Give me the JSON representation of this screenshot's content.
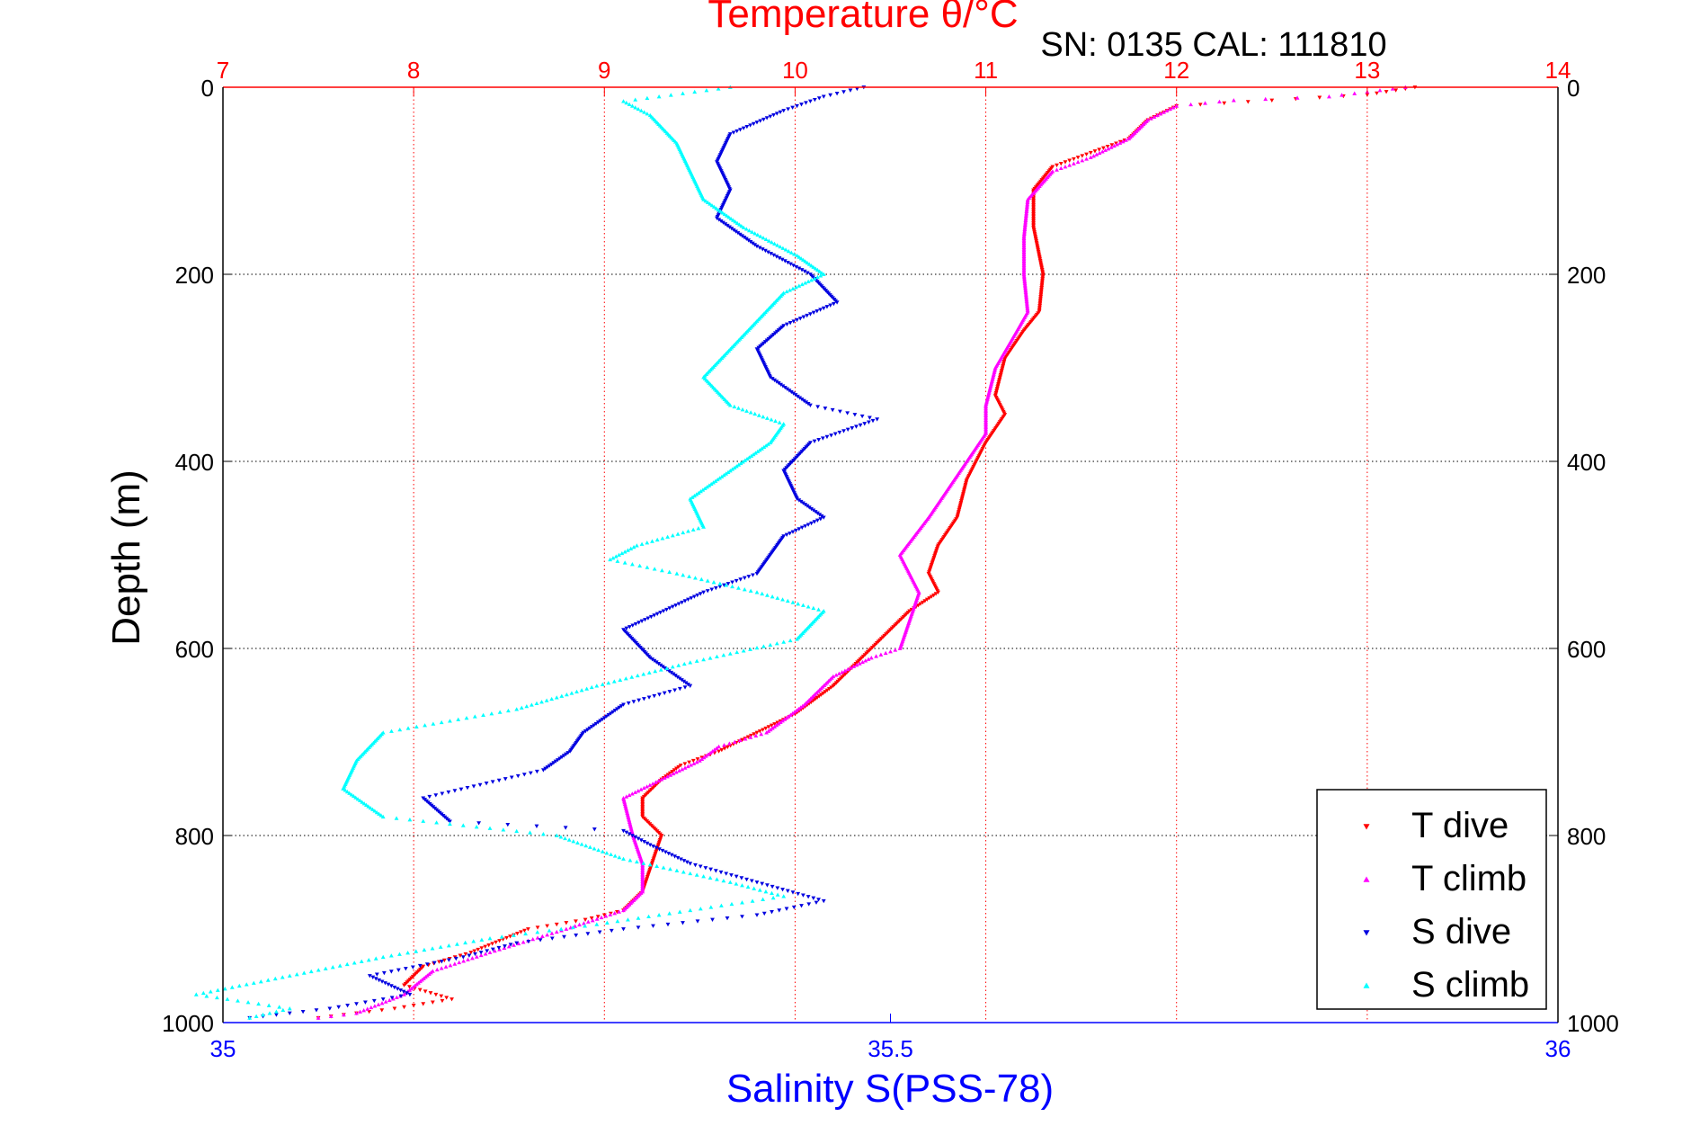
{
  "title_top": "Temperature θ/°C",
  "subtitle": "SN: 0135  CAL: 111810",
  "colors": {
    "t_dive": "#ff0000",
    "t_climb": "#ff00ff",
    "s_dive": "#0000e0",
    "s_climb": "#00ffff",
    "temp_axis": "#ff0000",
    "sal_axis": "#0000ff",
    "grid": "#000000"
  },
  "chart_data": {
    "type": "scatter",
    "title": "Temperature θ/°C",
    "subtitle": "SN: 0135  CAL: 111810",
    "ylabel": "Depth (m)",
    "xlabel_bottom": "Salinity S(PSS-78)",
    "xlabel_top": "Temperature θ/°C",
    "ylim": [
      0,
      1000
    ],
    "y_reversed": true,
    "y_ticks": [
      "0",
      "200",
      "400",
      "600",
      "800",
      "1000"
    ],
    "y_tick_values": [
      0,
      200,
      400,
      600,
      800,
      1000
    ],
    "temp_lim": [
      7,
      14
    ],
    "temp_ticks": [
      "7",
      "8",
      "9",
      "10",
      "11",
      "12",
      "13",
      "14"
    ],
    "temp_tick_values": [
      7,
      8,
      9,
      10,
      11,
      12,
      13,
      14
    ],
    "sal_lim": [
      35,
      36
    ],
    "sal_ticks": [
      "35",
      "35.5",
      "36"
    ],
    "sal_tick_values": [
      35,
      35.5,
      36
    ],
    "grid": true,
    "legend_position": "bottom-right",
    "series": [
      {
        "name": "T dive",
        "axis": "temperature",
        "marker": "triangle-down",
        "points": [
          [
            13.25,
            0
          ],
          [
            13.0,
            8
          ],
          [
            12.5,
            14
          ],
          [
            12.0,
            20
          ],
          [
            11.85,
            35
          ],
          [
            11.75,
            55
          ],
          [
            11.55,
            70
          ],
          [
            11.35,
            85
          ],
          [
            11.25,
            110
          ],
          [
            11.25,
            150
          ],
          [
            11.3,
            200
          ],
          [
            11.28,
            240
          ],
          [
            11.2,
            260
          ],
          [
            11.1,
            290
          ],
          [
            11.05,
            330
          ],
          [
            11.1,
            350
          ],
          [
            11.0,
            380
          ],
          [
            10.9,
            420
          ],
          [
            10.85,
            460
          ],
          [
            10.75,
            490
          ],
          [
            10.7,
            520
          ],
          [
            10.75,
            540
          ],
          [
            10.6,
            560
          ],
          [
            10.5,
            580
          ],
          [
            10.35,
            610
          ],
          [
            10.2,
            640
          ],
          [
            10.0,
            670
          ],
          [
            9.8,
            690
          ],
          [
            9.6,
            710
          ],
          [
            9.4,
            725
          ],
          [
            9.3,
            740
          ],
          [
            9.2,
            760
          ],
          [
            9.2,
            780
          ],
          [
            9.3,
            800
          ],
          [
            9.25,
            830
          ],
          [
            9.2,
            860
          ],
          [
            9.1,
            880
          ],
          [
            8.9,
            890
          ],
          [
            8.6,
            900
          ],
          [
            8.3,
            925
          ],
          [
            8.05,
            940
          ],
          [
            7.95,
            960
          ],
          [
            8.2,
            975
          ],
          [
            7.9,
            985
          ],
          [
            7.7,
            990
          ],
          [
            7.5,
            995
          ]
        ]
      },
      {
        "name": "T climb",
        "axis": "temperature",
        "marker": "triangle-up",
        "points": [
          [
            13.2,
            0
          ],
          [
            12.8,
            10
          ],
          [
            12.3,
            14
          ],
          [
            12.0,
            20
          ],
          [
            11.85,
            35
          ],
          [
            11.75,
            55
          ],
          [
            11.55,
            75
          ],
          [
            11.35,
            90
          ],
          [
            11.22,
            120
          ],
          [
            11.2,
            160
          ],
          [
            11.2,
            200
          ],
          [
            11.22,
            240
          ],
          [
            11.15,
            265
          ],
          [
            11.05,
            300
          ],
          [
            11.0,
            340
          ],
          [
            11.0,
            370
          ],
          [
            10.9,
            400
          ],
          [
            10.8,
            430
          ],
          [
            10.7,
            460
          ],
          [
            10.55,
            500
          ],
          [
            10.65,
            540
          ],
          [
            10.6,
            570
          ],
          [
            10.55,
            600
          ],
          [
            10.4,
            610
          ],
          [
            10.2,
            630
          ],
          [
            10.05,
            660
          ],
          [
            9.85,
            690
          ],
          [
            9.6,
            705
          ],
          [
            9.5,
            720
          ],
          [
            9.3,
            740
          ],
          [
            9.1,
            760
          ],
          [
            9.15,
            800
          ],
          [
            9.2,
            830
          ],
          [
            9.2,
            860
          ],
          [
            9.1,
            880
          ],
          [
            8.8,
            900
          ],
          [
            8.4,
            925
          ],
          [
            8.1,
            945
          ],
          [
            7.95,
            970
          ],
          [
            7.7,
            990
          ],
          [
            7.5,
            995
          ]
        ]
      },
      {
        "name": "S dive",
        "axis": "salinity",
        "marker": "triangle-down",
        "points": [
          [
            35.48,
            0
          ],
          [
            35.45,
            10
          ],
          [
            35.42,
            25
          ],
          [
            35.38,
            50
          ],
          [
            35.37,
            80
          ],
          [
            35.38,
            110
          ],
          [
            35.37,
            140
          ],
          [
            35.4,
            170
          ],
          [
            35.44,
            200
          ],
          [
            35.46,
            230
          ],
          [
            35.42,
            255
          ],
          [
            35.4,
            280
          ],
          [
            35.41,
            310
          ],
          [
            35.44,
            340
          ],
          [
            35.49,
            355
          ],
          [
            35.44,
            380
          ],
          [
            35.42,
            410
          ],
          [
            35.43,
            440
          ],
          [
            35.45,
            460
          ],
          [
            35.42,
            480
          ],
          [
            35.41,
            500
          ],
          [
            35.4,
            520
          ],
          [
            35.36,
            540
          ],
          [
            35.33,
            560
          ],
          [
            35.3,
            580
          ],
          [
            35.32,
            610
          ],
          [
            35.35,
            640
          ],
          [
            35.3,
            660
          ],
          [
            35.27,
            690
          ],
          [
            35.26,
            710
          ],
          [
            35.24,
            730
          ],
          [
            35.15,
            760
          ],
          [
            35.17,
            785
          ],
          [
            35.3,
            795
          ],
          [
            35.32,
            810
          ],
          [
            35.35,
            830
          ],
          [
            35.4,
            850
          ],
          [
            35.45,
            870
          ],
          [
            35.4,
            885
          ],
          [
            35.3,
            900
          ],
          [
            35.22,
            915
          ],
          [
            35.18,
            930
          ],
          [
            35.11,
            950
          ],
          [
            35.14,
            970
          ],
          [
            35.08,
            985
          ],
          [
            35.02,
            995
          ]
        ]
      },
      {
        "name": "S climb",
        "axis": "salinity",
        "marker": "triangle-up",
        "points": [
          [
            35.38,
            0
          ],
          [
            35.3,
            15
          ],
          [
            35.32,
            30
          ],
          [
            35.34,
            60
          ],
          [
            35.35,
            90
          ],
          [
            35.36,
            120
          ],
          [
            35.39,
            150
          ],
          [
            35.43,
            180
          ],
          [
            35.45,
            200
          ],
          [
            35.42,
            220
          ],
          [
            35.4,
            250
          ],
          [
            35.38,
            280
          ],
          [
            35.36,
            310
          ],
          [
            35.38,
            340
          ],
          [
            35.42,
            360
          ],
          [
            35.41,
            380
          ],
          [
            35.38,
            410
          ],
          [
            35.35,
            440
          ],
          [
            35.36,
            470
          ],
          [
            35.31,
            490
          ],
          [
            35.29,
            505
          ],
          [
            35.34,
            520
          ],
          [
            35.4,
            540
          ],
          [
            35.45,
            560
          ],
          [
            35.43,
            590
          ],
          [
            35.35,
            615
          ],
          [
            35.28,
            640
          ],
          [
            35.22,
            665
          ],
          [
            35.12,
            690
          ],
          [
            35.1,
            720
          ],
          [
            35.09,
            750
          ],
          [
            35.12,
            780
          ],
          [
            35.25,
            800
          ],
          [
            35.3,
            825
          ],
          [
            35.38,
            850
          ],
          [
            35.42,
            865
          ],
          [
            35.35,
            880
          ],
          [
            35.28,
            895
          ],
          [
            35.2,
            910
          ],
          [
            35.12,
            930
          ],
          [
            35.05,
            950
          ],
          [
            34.98,
            970
          ],
          [
            35.05,
            985
          ],
          [
            35.02,
            995
          ]
        ]
      }
    ]
  }
}
